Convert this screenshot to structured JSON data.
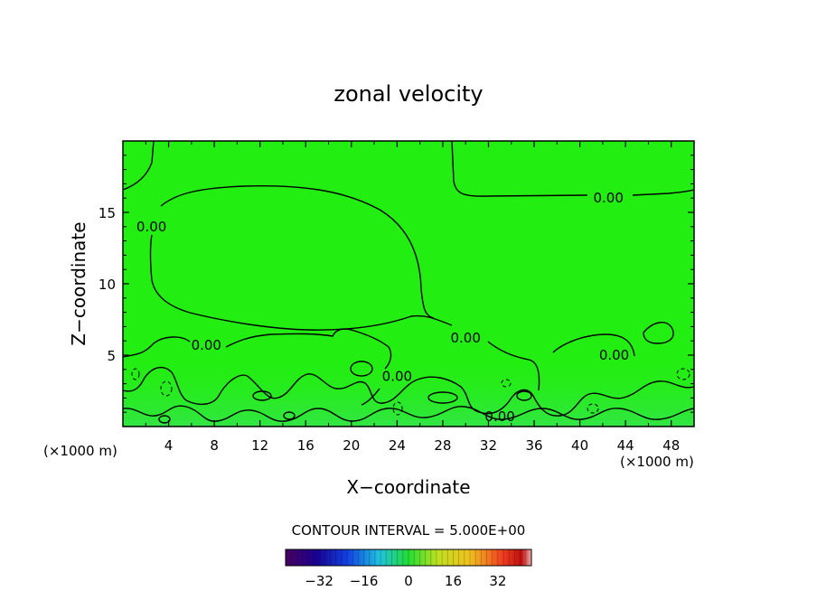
{
  "chart_data": {
    "type": "heatmap",
    "title": "zonal velocity",
    "xlabel": "X−coordinate",
    "ylabel": "Z−coordinate",
    "x_unit_left": "(×1000 m)",
    "x_unit_right": "(×1000 m)",
    "xlim": [
      0,
      50
    ],
    "ylim": [
      0,
      20
    ],
    "x_ticks": [
      4,
      8,
      12,
      16,
      20,
      24,
      28,
      32,
      36,
      40,
      44,
      48
    ],
    "x_tick_labels": [
      "4",
      "8",
      "12",
      "16",
      "20",
      "24",
      "28",
      "32",
      "36",
      "40",
      "44",
      "48"
    ],
    "y_ticks": [
      5,
      10,
      15
    ],
    "y_tick_labels": [
      "5",
      "10",
      "15"
    ],
    "field_background_color": "#22ee11",
    "contour_interval_text": "CONTOUR INTERVAL = 5.000E+00",
    "contour_labels": [
      {
        "text": "0.00",
        "x": 42.5,
        "y": 16.0
      },
      {
        "text": "0.00",
        "x": 2.5,
        "y": 14.0
      },
      {
        "text": "0.00",
        "x": 7.3,
        "y": 5.7
      },
      {
        "text": "0.00",
        "x": 30.0,
        "y": 6.2
      },
      {
        "text": "0.00",
        "x": 24.0,
        "y": 3.5
      },
      {
        "text": "0.00",
        "x": 33.0,
        "y": 0.7
      },
      {
        "text": "0.00",
        "x": 43.0,
        "y": 5.0
      }
    ],
    "colorbar": {
      "min": -44,
      "max": 44,
      "ticks": [
        -32,
        -16,
        0,
        16,
        32
      ],
      "tick_labels": [
        "−32",
        "−16",
        "0",
        "16",
        "32"
      ]
    }
  }
}
